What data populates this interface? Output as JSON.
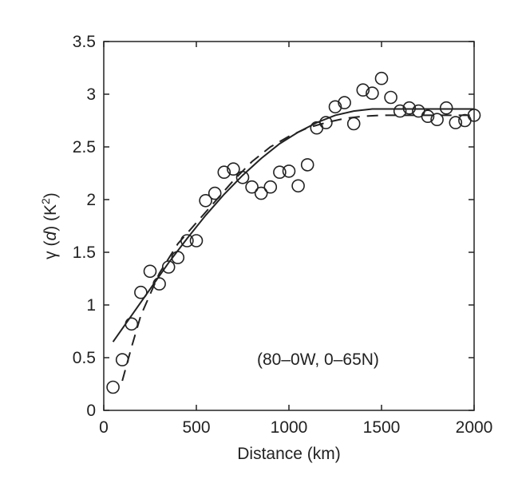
{
  "chart_data": {
    "type": "scatter",
    "title": "",
    "xlabel": "Distance (km)",
    "ylabel": "γ(d) (K²)",
    "ylabel_parts": {
      "gamma": "γ (",
      "d": "d",
      "close_unit": ") (K",
      "sup": "2",
      "end": ")"
    },
    "xlim": [
      0,
      2000
    ],
    "ylim": [
      0,
      3.5
    ],
    "xticks": [
      0,
      500,
      1000,
      1500,
      2000
    ],
    "yticks": [
      0,
      0.5,
      1,
      1.5,
      2,
      2.5,
      3,
      3.5
    ],
    "xtick_labels": [
      "0",
      "500",
      "1000",
      "1500",
      "2000"
    ],
    "ytick_labels": [
      "0",
      "0.5",
      "1",
      "1.5",
      "2",
      "2.5",
      "3",
      "3.5"
    ],
    "grid": false,
    "annotation": "(80–0W, 0–65N)",
    "series": [
      {
        "marker": "open-circle",
        "x": [
          50,
          100,
          150,
          200,
          250,
          300,
          350,
          400,
          450,
          500,
          550,
          600,
          650,
          700,
          750,
          800,
          850,
          900,
          950,
          1000,
          1050,
          1100,
          1150,
          1200,
          1250,
          1300,
          1350,
          1400,
          1450,
          1500,
          1550,
          1600,
          1650,
          1700,
          1750,
          1800,
          1850,
          1900,
          1950,
          2000
        ],
        "y": [
          0.22,
          0.48,
          0.82,
          1.12,
          1.32,
          1.2,
          1.36,
          1.45,
          1.61,
          1.61,
          1.99,
          2.06,
          2.26,
          2.29,
          2.21,
          2.12,
          2.06,
          2.12,
          2.26,
          2.27,
          2.13,
          2.33,
          2.68,
          2.73,
          2.88,
          2.92,
          2.72,
          3.04,
          3.01,
          3.15,
          2.97,
          2.84,
          2.87,
          2.84,
          2.79,
          2.76,
          2.87,
          2.73,
          2.75,
          2.8
        ]
      },
      {
        "style": "solid",
        "x": [
          50,
          150,
          250,
          350,
          450,
          550,
          650,
          750,
          850,
          950,
          1050,
          1150,
          1250,
          1350,
          1450,
          1500,
          1550,
          1600,
          1700,
          1800,
          1900,
          2000
        ],
        "y": [
          0.65,
          0.9,
          1.15,
          1.4,
          1.63,
          1.85,
          2.05,
          2.23,
          2.39,
          2.53,
          2.64,
          2.73,
          2.8,
          2.84,
          2.86,
          2.86,
          2.86,
          2.86,
          2.86,
          2.86,
          2.86,
          2.86
        ]
      },
      {
        "style": "dashed",
        "x": [
          100,
          150,
          200,
          300,
          400,
          500,
          600,
          700,
          800,
          900,
          1000,
          1100,
          1200,
          1300,
          1400,
          1500,
          1600,
          1700,
          1800,
          1900,
          2000
        ],
        "y": [
          0.28,
          0.6,
          0.9,
          1.3,
          1.58,
          1.78,
          1.98,
          2.18,
          2.36,
          2.5,
          2.6,
          2.68,
          2.73,
          2.77,
          2.79,
          2.8,
          2.8,
          2.8,
          2.8,
          2.8,
          2.8
        ]
      }
    ]
  }
}
